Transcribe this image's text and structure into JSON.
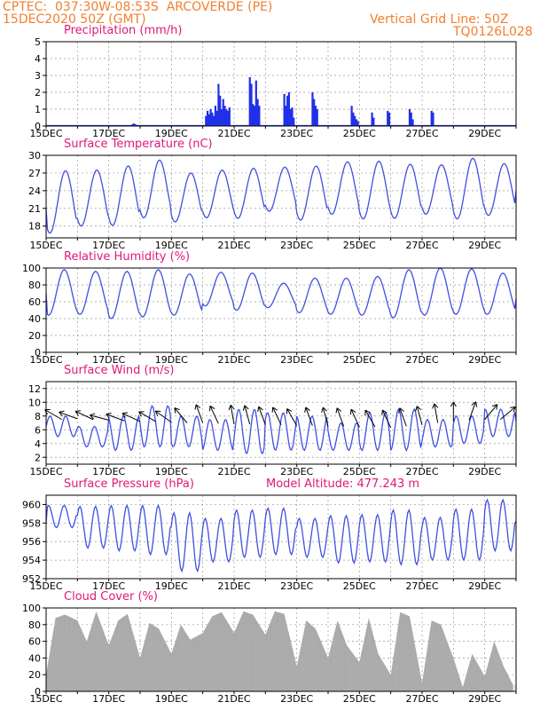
{
  "header": {
    "line1": "CPTEC:  037:30W-08:53S  ARCOVERDE (PE)",
    "line2": "15DEC2020 50Z (GMT)",
    "right1": "Vertical Grid Line: 50Z",
    "right2": "TQ0126L028"
  },
  "colors": {
    "header": "#f08030",
    "title": "#e0187a",
    "line": "#4050e0",
    "bar": "#2030e8",
    "cloud": "#aaaaaa",
    "arrow": "#000000"
  },
  "chart_data": [
    {
      "type": "bar",
      "title": "Precipitation (mm/h)",
      "ylim": [
        0,
        5
      ],
      "yticks": [
        0,
        1,
        2,
        3,
        4,
        5
      ],
      "xlim": [
        15,
        30
      ],
      "xticklabels": [
        "15DEC",
        "17DEC",
        "19DEC",
        "21DEC",
        "23DEC",
        "25DEC",
        "27DEC",
        "29DEC"
      ],
      "x": [
        17.75,
        17.8,
        17.85,
        20.1,
        20.15,
        20.2,
        20.25,
        20.3,
        20.35,
        20.4,
        20.45,
        20.5,
        20.55,
        20.6,
        20.65,
        20.7,
        20.75,
        20.8,
        20.85,
        21.5,
        21.55,
        21.6,
        21.65,
        21.7,
        21.75,
        21.8,
        22.6,
        22.65,
        22.7,
        22.75,
        22.8,
        22.85,
        22.9,
        23.5,
        23.55,
        23.6,
        23.65,
        24.75,
        24.8,
        24.85,
        24.9,
        24.95,
        25.4,
        25.45,
        25.9,
        25.95,
        26.6,
        26.65,
        26.7,
        27.3,
        27.35
      ],
      "values": [
        0.1,
        0.15,
        0.1,
        0.6,
        0.9,
        0.7,
        1.0,
        0.8,
        0.6,
        1.2,
        0.9,
        2.5,
        1.8,
        1.0,
        1.6,
        1.2,
        1.0,
        0.9,
        1.1,
        2.9,
        2.5,
        1.3,
        1.2,
        2.7,
        1.6,
        1.2,
        1.9,
        1.2,
        1.8,
        2.0,
        1.0,
        1.1,
        0.5,
        2.0,
        1.6,
        1.2,
        1.0,
        1.2,
        0.8,
        0.6,
        0.4,
        0.3,
        0.8,
        0.5,
        0.9,
        0.8,
        1.0,
        0.8,
        0.4,
        0.9,
        0.8
      ]
    },
    {
      "type": "line",
      "title": "Surface Temperature (nC)",
      "ylim": [
        16,
        30
      ],
      "yticks": [
        18,
        21,
        24,
        27,
        30
      ],
      "xlim": [
        15,
        30
      ],
      "xticklabels": [
        "15DEC",
        "17DEC",
        "19DEC",
        "21DEC",
        "23DEC",
        "25DEC",
        "27DEC",
        "29DEC"
      ],
      "min": [
        16.8,
        18.0,
        18.1,
        19.4,
        18.7,
        19.4,
        19.3,
        20.5,
        19.0,
        20.0,
        19.2,
        19.3,
        20.0,
        19.2,
        19.8
      ],
      "max": [
        27.4,
        27.5,
        28.2,
        29.2,
        27.0,
        27.5,
        27.8,
        28.0,
        28.2,
        28.9,
        29.0,
        28.5,
        28.4,
        29.5,
        28.6
      ],
      "start": 21.0,
      "end": 24.0
    },
    {
      "type": "line",
      "title": "Relative Humidity (%)",
      "ylim": [
        0,
        100
      ],
      "yticks": [
        0,
        20,
        40,
        60,
        80,
        100
      ],
      "xlim": [
        15,
        30
      ],
      "xticklabels": [
        "15DEC",
        "17DEC",
        "19DEC",
        "21DEC",
        "23DEC",
        "25DEC",
        "27DEC",
        "29DEC"
      ],
      "min": [
        44,
        45,
        40,
        42,
        44,
        55,
        50,
        53,
        47,
        45,
        44,
        41,
        44,
        45,
        45,
        45
      ],
      "max": [
        98,
        96,
        96,
        98,
        93,
        95,
        94,
        82,
        88,
        88,
        90,
        98,
        100,
        99,
        94
      ],
      "start": 70,
      "end": 63
    },
    {
      "type": "line",
      "title": "Surface Wind (m/s)",
      "ylim": [
        1,
        13
      ],
      "yticks": [
        2,
        4,
        6,
        8,
        10,
        12
      ],
      "xlim": [
        15,
        30
      ],
      "xticklabels": [
        "15DEC",
        "17DEC",
        "19DEC",
        "21DEC",
        "23DEC",
        "25DEC",
        "27DEC",
        "29DEC"
      ],
      "min": [
        5,
        3.5,
        3,
        3.5,
        3.5,
        3,
        2.5,
        3,
        3,
        3,
        3,
        3,
        3.5,
        4,
        5,
        4,
        4.5,
        4,
        4.5,
        4,
        3.5,
        4,
        4,
        4,
        4,
        4,
        4,
        5,
        5,
        5
      ],
      "max": [
        8,
        6.5,
        8,
        9.5,
        8,
        7.5,
        9,
        8.5,
        8,
        7,
        8.5,
        9,
        7.5,
        8,
        9,
        8,
        8,
        8.5,
        8,
        9,
        8,
        9,
        10,
        9,
        11,
        10.5,
        11,
        9.5,
        10,
        8.5
      ],
      "arrows_x": [
        15.5,
        16.0,
        16.5,
        17.0,
        17.5,
        18.0,
        18.5,
        19.0,
        19.5,
        20.0,
        20.5,
        21.0,
        21.5,
        22.0,
        22.5,
        23.0,
        23.5,
        24.0,
        24.5,
        25.0,
        25.5,
        26.0,
        26.5,
        27.0,
        27.5,
        28.0,
        28.5,
        29.0,
        29.5
      ],
      "arrows_y": [
        7.5,
        7.6,
        7.5,
        7.4,
        7.3,
        7.2,
        7.2,
        7.1,
        7.0,
        7.0,
        6.9,
        6.8,
        6.8,
        6.7,
        6.7,
        6.6,
        6.6,
        6.5,
        6.5,
        6.4,
        6.4,
        6.3,
        6.5,
        6.7,
        7.0,
        7.2,
        7.4,
        7.5,
        7.5
      ],
      "arrows_dir_deg": [
        210,
        200,
        205,
        195,
        200,
        205,
        210,
        215,
        230,
        250,
        245,
        260,
        255,
        250,
        245,
        240,
        250,
        255,
        250,
        245,
        240,
        245,
        250,
        255,
        260,
        270,
        290,
        310,
        320
      ]
    },
    {
      "type": "line",
      "title": "Surface Pressure (hPa)",
      "annotation": "Model Altitude: 477.243  m",
      "ylim": [
        952,
        961
      ],
      "yticks": [
        952,
        954,
        956,
        958,
        960
      ],
      "xlim": [
        15,
        30
      ],
      "xticklabels": [
        "15DEC",
        "17DEC",
        "19DEC",
        "21DEC",
        "23DEC",
        "25DEC",
        "27DEC",
        "29DEC"
      ],
      "min": [
        957.5,
        955.3,
        955.0,
        954.6,
        952.8,
        953.8,
        954.3,
        954.6,
        954.3,
        953.7,
        953.8,
        953.5,
        954.0,
        954.0,
        955.0,
        955.8
      ],
      "max": [
        959.9,
        959.8,
        959.9,
        959.9,
        959.1,
        958.5,
        959.4,
        959.6,
        958.5,
        958.8,
        958.9,
        959.4,
        958.6,
        959.5,
        960.5,
        958.5
      ],
      "start": 958.0,
      "end": 958.2
    },
    {
      "type": "area",
      "title": "Cloud Cover (%)",
      "ylim": [
        0,
        100
      ],
      "yticks": [
        0,
        20,
        40,
        60,
        80,
        100
      ],
      "xlim": [
        15,
        30
      ],
      "xticklabels": [
        "15DEC",
        "17DEC",
        "19DEC",
        "21DEC",
        "23DEC",
        "25DEC",
        "27DEC",
        "29DEC"
      ],
      "x": [
        15.0,
        15.3,
        15.6,
        16.0,
        16.3,
        16.6,
        17.0,
        17.3,
        17.6,
        18.0,
        18.3,
        18.6,
        19.0,
        19.3,
        19.6,
        20.0,
        20.3,
        20.6,
        21.0,
        21.3,
        21.6,
        22.0,
        22.3,
        22.6,
        23.0,
        23.3,
        23.6,
        24.0,
        24.3,
        24.6,
        25.0,
        25.3,
        25.6,
        26.0,
        26.3,
        26.6,
        27.0,
        27.3,
        27.6,
        28.0,
        28.3,
        28.6,
        29.0,
        29.3,
        29.6,
        29.9
      ],
      "values": [
        20,
        88,
        92,
        85,
        60,
        96,
        55,
        85,
        93,
        40,
        82,
        75,
        45,
        80,
        62,
        70,
        90,
        95,
        70,
        96,
        92,
        68,
        96,
        93,
        30,
        85,
        75,
        40,
        85,
        55,
        35,
        88,
        45,
        20,
        95,
        90,
        10,
        85,
        80,
        40,
        5,
        45,
        18,
        60,
        30,
        8
      ]
    }
  ]
}
